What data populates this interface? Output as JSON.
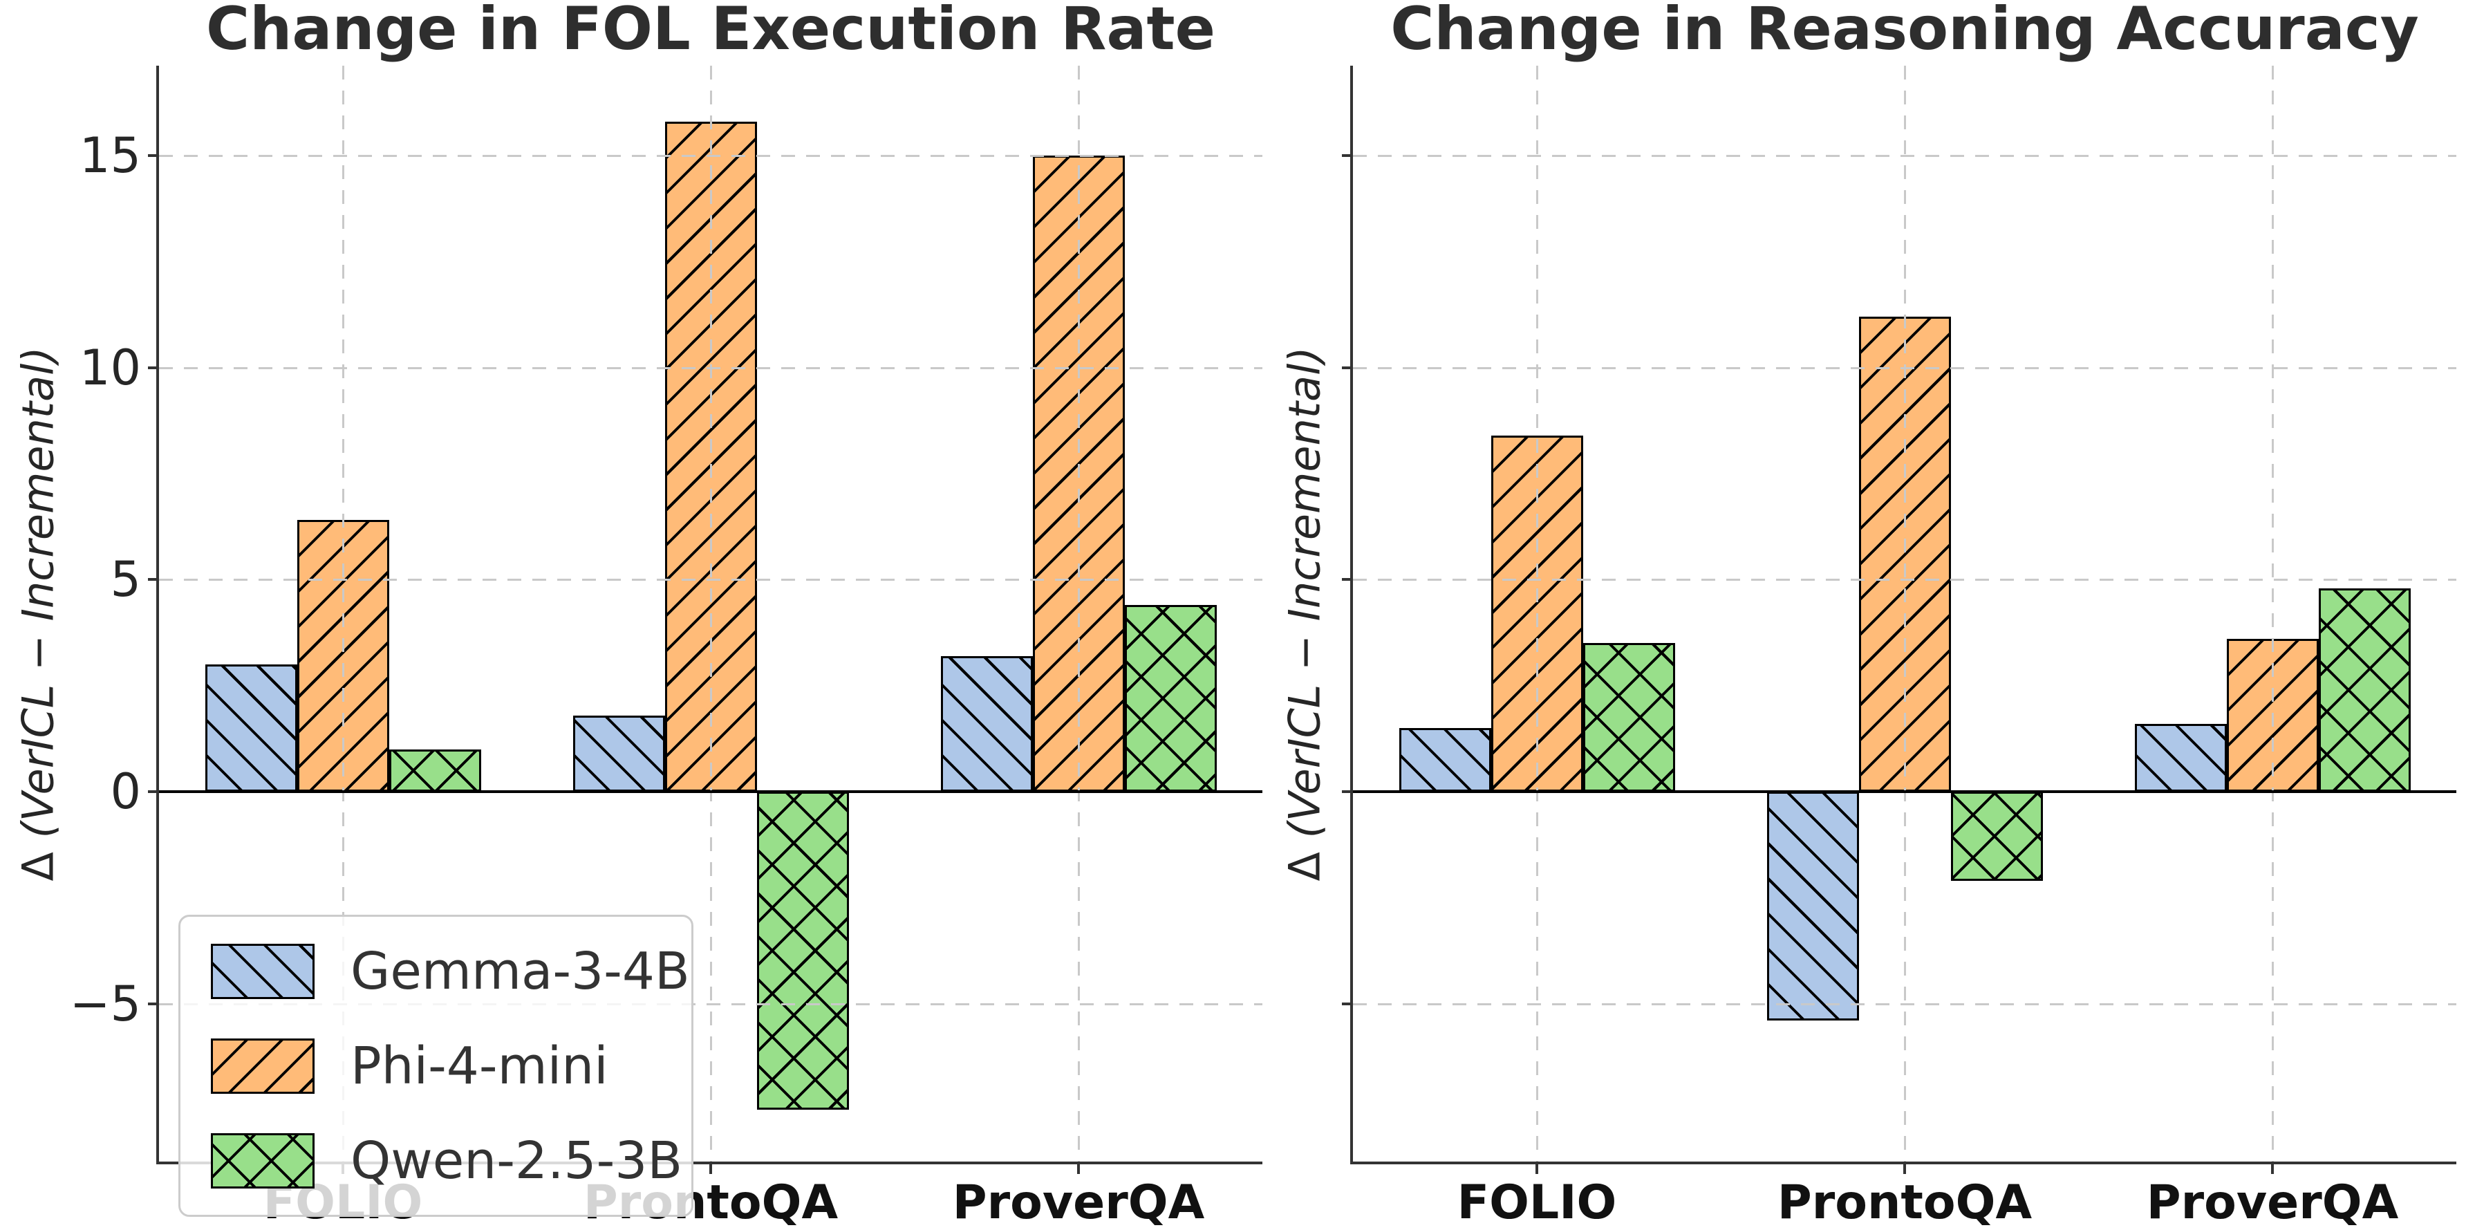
{
  "figure": {
    "panels": [
      {
        "title": "Change in FOL Execution Rate",
        "ylabel_delta": "Δ ",
        "ylabel_rest": "(VerICL − Incremental)"
      },
      {
        "title": "Change in Reasoning Accuracy",
        "ylabel_delta": "Δ ",
        "ylabel_rest": "(VerICL − Incremental)"
      }
    ]
  },
  "legend": {
    "entries": [
      {
        "label": "Gemma-3-4B",
        "color": "#aec7e8",
        "hatch": "/"
      },
      {
        "label": "Phi-4-mini",
        "color": "#ffbb78",
        "hatch": "\\"
      },
      {
        "label": "Qwen-2.5-3B",
        "color": "#98df8a",
        "hatch": "x"
      }
    ],
    "position": "lower left of first panel"
  },
  "colors": {
    "bar_blue": "#aec7e8",
    "bar_orange": "#ffbb78",
    "bar_green": "#98df8a",
    "bar_edge": "#000000",
    "grid": "#c9c9c9",
    "spine": "#333333",
    "title_text": "#2e2e2e",
    "tick_text": "#262626",
    "background": "#ffffff"
  },
  "chart_data": [
    {
      "type": "bar",
      "title": "Change in FOL Execution Rate",
      "categories": [
        "FOLIO",
        "ProntoQA",
        "ProverQA"
      ],
      "series": [
        {
          "name": "Gemma-3-4B",
          "values": [
            3.0,
            1.8,
            3.2
          ]
        },
        {
          "name": "Phi-4-mini",
          "values": [
            6.4,
            15.8,
            15.0
          ]
        },
        {
          "name": "Qwen-2.5-3B",
          "values": [
            1.0,
            -7.5,
            4.4
          ]
        }
      ],
      "xlabel": "",
      "ylabel": "Δ (VerICL − Incremental)",
      "yticks": [
        -5,
        0,
        5,
        10,
        15
      ],
      "ylim": [
        -8.7,
        17.1
      ],
      "grid": true,
      "grid_style": "dashed, drawn above bars",
      "zero_line": true,
      "ytick_labels_visible": true,
      "legend_visible": true
    },
    {
      "type": "bar",
      "title": "Change in Reasoning Accuracy",
      "categories": [
        "FOLIO",
        "ProntoQA",
        "ProverQA"
      ],
      "series": [
        {
          "name": "Gemma-3-4B",
          "values": [
            1.5,
            -5.4,
            1.6
          ]
        },
        {
          "name": "Phi-4-mini",
          "values": [
            8.4,
            11.2,
            3.6
          ]
        },
        {
          "name": "Qwen-2.5-3B",
          "values": [
            3.5,
            -2.1,
            4.8
          ]
        }
      ],
      "xlabel": "",
      "ylabel": "Δ (VerICL − Incremental)",
      "yticks": [
        -5,
        0,
        5,
        10,
        15
      ],
      "ylim": [
        -8.7,
        17.1
      ],
      "grid": true,
      "grid_style": "dashed, drawn above bars",
      "zero_line": true,
      "ytick_labels_visible": false,
      "legend_visible": false
    }
  ]
}
